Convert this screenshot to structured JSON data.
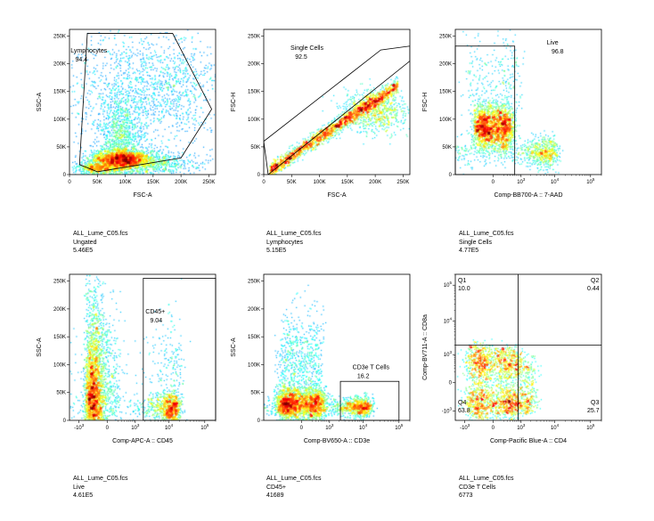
{
  "chart_data": [
    {
      "type": "scatter",
      "plot_kind": "density-dot-plot",
      "xlabel": "FSC-A",
      "ylabel": "SSC-A",
      "xscale": "linear",
      "yscale": "linear",
      "xlim": [
        0,
        262144
      ],
      "ylim": [
        0,
        262144
      ],
      "xticks": [
        0,
        50000,
        100000,
        150000,
        200000,
        250000
      ],
      "xtick_labels": [
        "0",
        "50K",
        "100K",
        "150K",
        "200K",
        "250K"
      ],
      "yticks": [
        0,
        50000,
        100000,
        150000,
        200000,
        250000
      ],
      "ytick_labels": [
        "0",
        "50K",
        "100K",
        "150K",
        "200K",
        "250K"
      ],
      "gate": {
        "name": "Lymphocytes",
        "value": "94.4",
        "shape": "polygon",
        "vertices": [
          [
            18000,
            18000
          ],
          [
            32000,
            255000
          ],
          [
            185000,
            255000
          ],
          [
            255000,
            118000
          ],
          [
            200000,
            30000
          ],
          [
            50000,
            5000
          ]
        ],
        "label_at": [
          2000,
          220000
        ]
      },
      "populations": [
        {
          "cx": 95000,
          "cy": 28000,
          "sx": 30000,
          "sy": 9000,
          "w": 8
        },
        {
          "cx": 90000,
          "cy": 55000,
          "sx": 18000,
          "sy": 45000,
          "w": 4
        },
        {
          "cx": 105000,
          "cy": 150000,
          "sx": 60000,
          "sy": 60000,
          "w": 4
        },
        {
          "cx": 200000,
          "cy": 160000,
          "sx": 40000,
          "sy": 50000,
          "w": 2
        },
        {
          "cx": 50000,
          "cy": 12000,
          "sx": 20000,
          "sy": 6000,
          "w": 2
        },
        {
          "cx": 150000,
          "cy": 20000,
          "sx": 45000,
          "sy": 12000,
          "w": 2
        }
      ],
      "caption": {
        "file": "ALL_Lume_C05.fcs",
        "population": "Ungated",
        "count": "5.46E5"
      }
    },
    {
      "type": "scatter",
      "plot_kind": "density-dot-plot",
      "xlabel": "FSC-A",
      "ylabel": "FSC-H",
      "xscale": "linear",
      "yscale": "linear",
      "xlim": [
        0,
        262144
      ],
      "ylim": [
        0,
        262144
      ],
      "xticks": [
        0,
        50000,
        100000,
        150000,
        200000,
        250000
      ],
      "xtick_labels": [
        "0",
        "50K",
        "100K",
        "150K",
        "200K",
        "250K"
      ],
      "yticks": [
        0,
        50000,
        100000,
        150000,
        200000,
        250000
      ],
      "ytick_labels": [
        "0",
        "50K",
        "100K",
        "150K",
        "200K",
        "250K"
      ],
      "gate": {
        "name": "Single Cells",
        "value": "92.5",
        "shape": "polygon",
        "vertices": [
          [
            0,
            60000
          ],
          [
            210000,
            225000
          ],
          [
            262144,
            232000
          ],
          [
            262144,
            205000
          ],
          [
            8000,
            0
          ]
        ],
        "label_at": [
          48000,
          225000
        ]
      },
      "populations": [
        {
          "kind": "diagonal",
          "slope": 0.68,
          "x0": 10000,
          "x1": 240000,
          "spread": 7000,
          "w": 8
        },
        {
          "cx": 200000,
          "cy": 115000,
          "sx": 30000,
          "sy": 20000,
          "w": 3
        }
      ],
      "caption": {
        "file": "ALL_Lume_C05.fcs",
        "population": "Lymphocytes",
        "count": "5.15E5"
      }
    },
    {
      "type": "scatter",
      "plot_kind": "density-dot-plot",
      "xlabel": "Comp-BB700-A :: 7-AAD",
      "ylabel": "FSC-H",
      "xscale": "biexponential",
      "yscale": "linear",
      "xlim": [
        -2000,
        200000
      ],
      "ylim": [
        0,
        262144
      ],
      "xticks": [
        0,
        1000,
        10000,
        100000
      ],
      "xtick_labels": [
        "0",
        "10^3",
        "10^4",
        "10^5"
      ],
      "yticks": [
        0,
        50000,
        100000,
        150000,
        200000,
        250000
      ],
      "ytick_labels": [
        "0",
        "50K",
        "100K",
        "150K",
        "200K",
        "250K"
      ],
      "gate": {
        "name": "Live",
        "value": "96.8",
        "shape": "rectangle",
        "x": [
          -2000,
          600
        ],
        "y": [
          0,
          232000
        ],
        "label_at": [
          6000,
          235000
        ]
      },
      "populations": [
        {
          "cx": 0,
          "cy": 85000,
          "sx": 250,
          "sy": 22000,
          "w": 9
        },
        {
          "cx": 3500,
          "cy": 40000,
          "sx": 4000,
          "sy": 14000,
          "w": 3
        },
        {
          "cx": 40,
          "cy": 175000,
          "sx": 500,
          "sy": 40000,
          "w": 1
        }
      ],
      "caption": {
        "file": "ALL_Lume_C05.fcs",
        "population": "Single Cells",
        "count": "4.77E5"
      }
    },
    {
      "type": "scatter",
      "plot_kind": "density-dot-plot",
      "xlabel": "Comp-APC-A :: CD45",
      "ylabel": "SSC-A",
      "xscale": "biexponential",
      "yscale": "linear",
      "xlim": [
        -2000,
        200000
      ],
      "ylim": [
        0,
        262144
      ],
      "xticks": [
        -1000,
        0,
        1000,
        10000,
        100000
      ],
      "xtick_labels": [
        "-10^3",
        "0",
        "10^3",
        "10^4",
        "10^5"
      ],
      "yticks": [
        0,
        50000,
        100000,
        150000,
        200000,
        250000
      ],
      "ytick_labels": [
        "0",
        "50K",
        "100K",
        "150K",
        "200K",
        "250K"
      ],
      "gate": {
        "name": "CD45+",
        "value": "9.04",
        "shape": "rectangle",
        "x": [
          1800,
          200000
        ],
        "y": [
          0,
          255000
        ],
        "label_at": [
          2100,
          192000
        ]
      },
      "populations": [
        {
          "cx": -250,
          "cy": 35000,
          "sx": 200,
          "sy": 45000,
          "w": 9
        },
        {
          "cx": -250,
          "cy": 140000,
          "sx": 180,
          "sy": 50000,
          "w": 3
        },
        {
          "cx": 9000,
          "cy": 22000,
          "sx": 6000,
          "sy": 15000,
          "w": 4
        },
        {
          "cx": 9000,
          "cy": 90000,
          "sx": 8000,
          "sy": 50000,
          "w": 1
        }
      ],
      "caption": {
        "file": "ALL_Lume_C05.fcs",
        "population": "Live",
        "count": "4.61E5"
      }
    },
    {
      "type": "scatter",
      "plot_kind": "density-dot-plot",
      "xlabel": "Comp-BV650-A :: CD3e",
      "ylabel": "SSC-A",
      "xscale": "biexponential",
      "yscale": "linear",
      "xlim": [
        -2000,
        200000
      ],
      "ylim": [
        0,
        262144
      ],
      "xticks": [
        0,
        1000,
        10000,
        100000
      ],
      "xtick_labels": [
        "0",
        "10^3",
        "10^4",
        "10^5"
      ],
      "yticks": [
        0,
        50000,
        100000,
        150000,
        200000,
        250000
      ],
      "ytick_labels": [
        "0",
        "50K",
        "100K",
        "150K",
        "200K",
        "250K"
      ],
      "gate": {
        "name": "CD3e T Cells",
        "value": "16.2",
        "shape": "rectangle",
        "x": [
          2200,
          100000
        ],
        "y": [
          0,
          70000
        ],
        "label_at": [
          5000,
          92000
        ]
      },
      "populations": [
        {
          "cx": -50,
          "cy": 30000,
          "sx": 350,
          "sy": 15000,
          "w": 9
        },
        {
          "cx": -50,
          "cy": 100000,
          "sx": 300,
          "sy": 50000,
          "w": 3
        },
        {
          "cx": 6000,
          "cy": 25000,
          "sx": 5500,
          "sy": 9000,
          "w": 4
        }
      ],
      "caption": {
        "file": "ALL_Lume_C05.fcs",
        "population": "CD45+",
        "count": "41689"
      }
    },
    {
      "type": "scatter",
      "plot_kind": "density-dot-plot",
      "xlabel": "Comp-Pacific Blue-A :: CD4",
      "ylabel": "Comp-BV711-A :: CD8a",
      "xscale": "biexponential",
      "yscale": "biexponential",
      "xlim": [
        -2000,
        200000
      ],
      "ylim": [
        -2000,
        200000
      ],
      "xticks": [
        -1000,
        0,
        1000,
        10000,
        100000
      ],
      "xtick_labels": [
        "-10^3",
        "0",
        "10^3",
        "10^4",
        "10^5"
      ],
      "yticks": [
        -1000,
        0,
        1000,
        10000,
        100000
      ],
      "ytick_labels": [
        "-10^3",
        "0",
        "10^3",
        "10^4",
        "10^5"
      ],
      "gate": {
        "name": "Quadrants",
        "shape": "quadrant",
        "split": [
          800,
          2000
        ]
      },
      "quadrants": [
        {
          "name": "Q1",
          "value": "10.0",
          "corner": "top-left"
        },
        {
          "name": "Q2",
          "value": "0.44",
          "corner": "top-right"
        },
        {
          "name": "Q3",
          "value": "25.7",
          "corner": "bottom-right"
        },
        {
          "name": "Q4",
          "value": "63.8",
          "corner": "bottom-left"
        }
      ],
      "populations": [
        {
          "cx": 30,
          "cy": -100,
          "sx": 450,
          "sy": 700,
          "w": 6
        },
        {
          "cx": -150,
          "cy": 600,
          "sx": 300,
          "sy": 900,
          "w": 2
        },
        {
          "cx": 1200,
          "cy": -200,
          "sx": 900,
          "sy": 500,
          "w": 2
        }
      ],
      "caption": {
        "file": "ALL_Lume_C05.fcs",
        "population": "CD3e T Cells",
        "count": "6773"
      }
    }
  ]
}
